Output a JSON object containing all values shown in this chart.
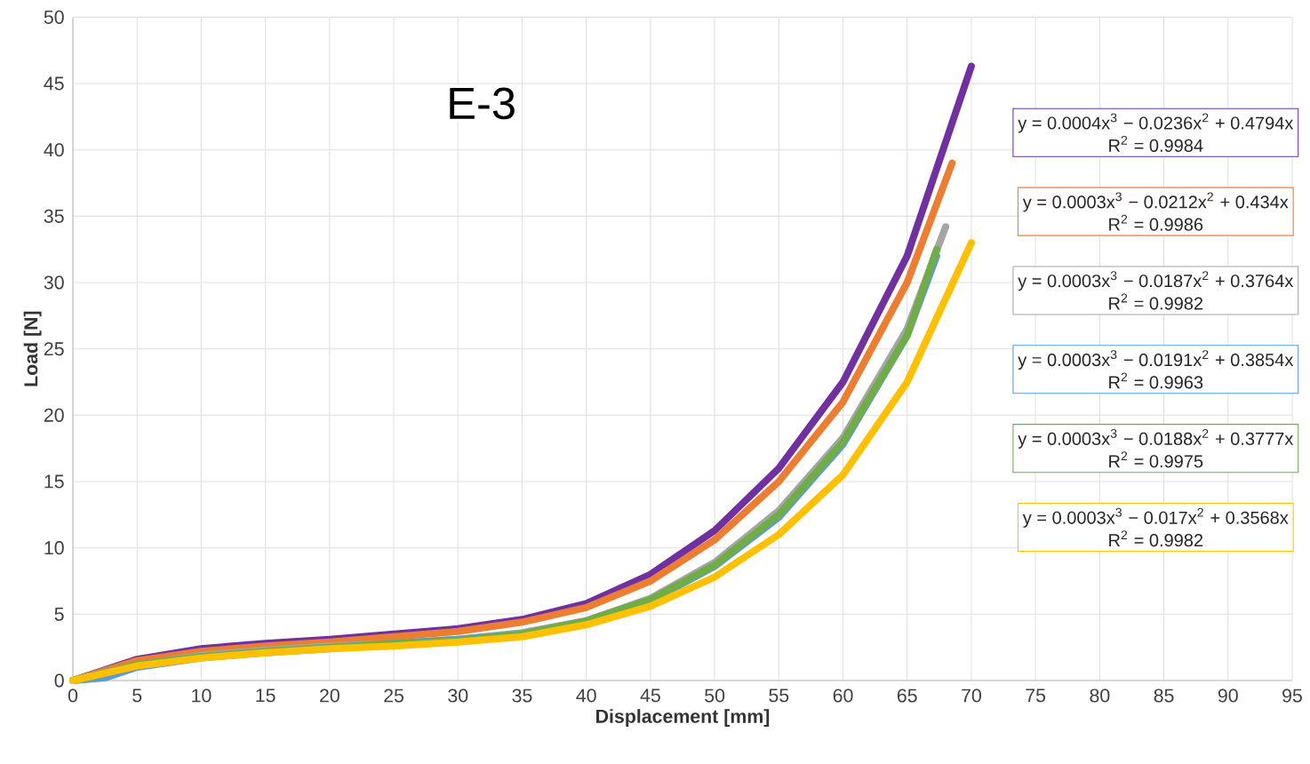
{
  "chart_data": {
    "type": "line",
    "title": "E-3",
    "xlabel": "Displacement [mm]",
    "ylabel": "Load [N]",
    "xlim": [
      0,
      95
    ],
    "ylim": [
      0,
      50
    ],
    "xticks": [
      0,
      5,
      10,
      15,
      20,
      25,
      30,
      35,
      40,
      45,
      50,
      55,
      60,
      65,
      70,
      75,
      80,
      85,
      90,
      95
    ],
    "yticks": [
      0,
      5,
      10,
      15,
      20,
      25,
      30,
      35,
      40,
      45,
      50
    ],
    "grid": true,
    "series": [
      {
        "color": "#7030a0",
        "x": [
          0,
          5,
          10,
          15,
          20,
          25,
          30,
          35,
          40,
          45,
          50,
          55,
          60,
          65,
          70
        ],
        "values": [
          0,
          1.6,
          2.4,
          2.8,
          3.1,
          3.5,
          3.9,
          4.6,
          5.8,
          8.0,
          11.3,
          16,
          22.5,
          32,
          46.3
        ]
      },
      {
        "color": "#ed7d31",
        "x": [
          0,
          5,
          10,
          15,
          20,
          25,
          30,
          35,
          40,
          45,
          50,
          55,
          60,
          65,
          68.5
        ],
        "values": [
          0,
          1.5,
          2.2,
          2.6,
          2.9,
          3.3,
          3.7,
          4.4,
          5.5,
          7.5,
          10.6,
          15,
          21,
          30,
          39
        ]
      },
      {
        "color": "#a5a5a5",
        "x": [
          0,
          5,
          10,
          15,
          20,
          25,
          30,
          35,
          40,
          45,
          50,
          55,
          60,
          65,
          68
        ],
        "values": [
          0,
          1.2,
          1.9,
          2.3,
          2.6,
          2.8,
          3.1,
          3.6,
          4.5,
          6.2,
          8.9,
          12.8,
          18.3,
          26.5,
          34.2
        ]
      },
      {
        "color": "#5b9bd5",
        "x": [
          0,
          2.5,
          5,
          10,
          15,
          20,
          25,
          30,
          35,
          40,
          45,
          50,
          55,
          60,
          65,
          67.3
        ],
        "values": [
          0,
          0.2,
          1.0,
          1.7,
          2.1,
          2.4,
          2.8,
          3.1,
          3.5,
          4.4,
          6.0,
          8.6,
          12.3,
          17.8,
          26,
          32
        ]
      },
      {
        "color": "#70ad47",
        "x": [
          0,
          5,
          10,
          15,
          20,
          25,
          30,
          35,
          40,
          45,
          50,
          55,
          60,
          65,
          67.3
        ],
        "values": [
          0,
          1.2,
          1.8,
          2.2,
          2.5,
          2.8,
          3.0,
          3.5,
          4.5,
          6.1,
          8.7,
          12.5,
          18,
          26,
          32.5
        ]
      },
      {
        "color": "#ffc000",
        "x": [
          0,
          5,
          10,
          15,
          20,
          25,
          30,
          35,
          40,
          45,
          50,
          55,
          60,
          65,
          70
        ],
        "values": [
          0,
          1.1,
          1.7,
          2.1,
          2.4,
          2.6,
          2.9,
          3.3,
          4.2,
          5.6,
          7.8,
          11,
          15.5,
          22.5,
          33
        ]
      }
    ],
    "annotations": [
      "y = 0.0004x$^{3}$ − 0.0236x$^{2}$ + 0.4794x",
      "R$^{2}$ = 0.9984",
      "y = 0.0003x$^{3}$ − 0.0212x$^{2}$ + 0.434x",
      "R$^{2}$ = 0.9986",
      "y = 0.0003x$^{3}$ − 0.0187x$^{2}$ + 0.3764x",
      "R$^{2}$ = 0.9982",
      "y = 0.0003x$^{3}$ − 0.0191x$^{2}$ + 0.3854x",
      "R$^{2}$ = 0.9963",
      "y = 0.0003x$^{3}$ − 0.0188x$^{2}$ + 0.3777x",
      "R$^{2}$ = 0.9975",
      "y = 0.0003x$^{3}$ − 0.017x$^{2}$ + 0.3568x",
      "R$^{2}$ = 0.9982"
    ]
  }
}
